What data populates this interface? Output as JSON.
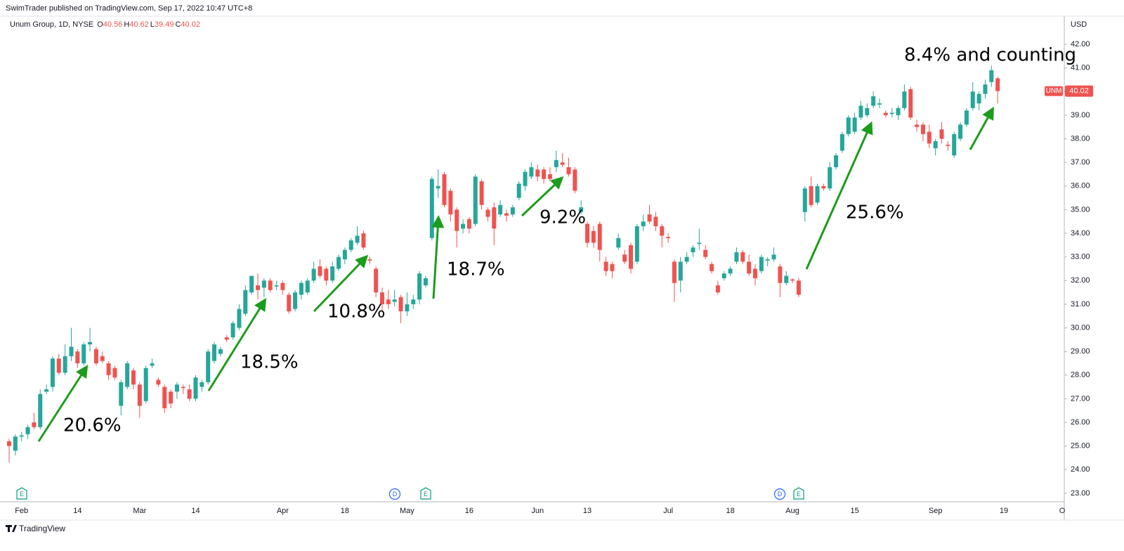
{
  "header": {
    "text": "SwimTrader published on TradingView.com, Sep 17, 2022 10:47 UTC+8"
  },
  "footer": {
    "text": "TradingView"
  },
  "chart_data": {
    "type": "candlestick",
    "title": "Unum Group, 1D, NYSE",
    "ohlc_prefixes": [
      "O",
      "H",
      "L",
      "C"
    ],
    "symbol": "UNM",
    "currency": "USD",
    "up_color": "#26a69a",
    "down_color": "#ef5350",
    "ylim": [
      22.64,
      43.19
    ],
    "yticks": [
      {
        "value": 23,
        "label": "23.00"
      },
      {
        "value": 24,
        "label": "24.00"
      },
      {
        "value": 25,
        "label": "25.00"
      },
      {
        "value": 26,
        "label": "26.00"
      },
      {
        "value": 27,
        "label": "27.00"
      },
      {
        "value": 28,
        "label": "28.00"
      },
      {
        "value": 29,
        "label": "29.00"
      },
      {
        "value": 30,
        "label": "30.00"
      },
      {
        "value": 31,
        "label": "31.00"
      },
      {
        "value": 32,
        "label": "32.00"
      },
      {
        "value": 33,
        "label": "33.00"
      },
      {
        "value": 34,
        "label": "34.00"
      },
      {
        "value": 35,
        "label": "35.00"
      },
      {
        "value": 36,
        "label": "36.00"
      },
      {
        "value": 37,
        "label": "37.00"
      },
      {
        "value": 38,
        "label": "38.00"
      },
      {
        "value": 39,
        "label": "39.00"
      },
      {
        "value": 40,
        "label": "40.00"
      },
      {
        "value": 41,
        "label": "41.00"
      },
      {
        "value": 42,
        "label": "42.00"
      }
    ],
    "categories": [
      null,
      null,
      "Feb",
      null,
      null,
      null,
      null,
      null,
      null,
      null,
      null,
      "14",
      null,
      null,
      null,
      null,
      null,
      null,
      null,
      null,
      null,
      "Mar",
      null,
      null,
      null,
      null,
      null,
      null,
      null,
      null,
      "14",
      null,
      null,
      null,
      null,
      null,
      null,
      null,
      null,
      null,
      null,
      null,
      null,
      null,
      "Apr",
      null,
      null,
      null,
      null,
      null,
      null,
      null,
      null,
      null,
      "18",
      null,
      null,
      null,
      null,
      null,
      null,
      null,
      null,
      null,
      "May",
      null,
      null,
      null,
      null,
      null,
      null,
      null,
      null,
      null,
      "16",
      null,
      null,
      null,
      null,
      null,
      null,
      null,
      null,
      null,
      null,
      "Jun",
      null,
      null,
      null,
      null,
      null,
      null,
      null,
      "13",
      null,
      null,
      null,
      null,
      null,
      null,
      null,
      null,
      null,
      null,
      null,
      null,
      "Jul",
      null,
      null,
      null,
      null,
      null,
      null,
      null,
      null,
      null,
      "18",
      null,
      null,
      null,
      null,
      null,
      null,
      null,
      null,
      null,
      "Aug",
      null,
      null,
      null,
      null,
      null,
      null,
      null,
      null,
      null,
      "15",
      null,
      null,
      null,
      null,
      null,
      null,
      null,
      null,
      null,
      null,
      null,
      null,
      "Sep",
      null,
      null,
      null,
      null,
      null,
      null,
      null,
      null,
      null,
      null
    ],
    "future_axis_labels": [
      "19",
      "O"
    ],
    "ohlc": [
      [
        25.2,
        25.3,
        24.3,
        25.0
      ],
      [
        24.8,
        25.5,
        24.6,
        25.4
      ],
      [
        25.4,
        25.6,
        25.2,
        25.45
      ],
      [
        25.5,
        25.9,
        25.3,
        25.8
      ],
      [
        26.0,
        26.4,
        25.7,
        25.8
      ],
      [
        25.8,
        27.4,
        25.7,
        27.2
      ],
      [
        27.3,
        27.6,
        27.2,
        27.4
      ],
      [
        27.5,
        28.8,
        27.3,
        28.7
      ],
      [
        28.7,
        28.9,
        28.0,
        28.1
      ],
      [
        28.1,
        29.3,
        28.0,
        28.8
      ],
      [
        28.8,
        30.0,
        28.6,
        29.2
      ],
      [
        29.0,
        29.1,
        28.3,
        28.5
      ],
      [
        28.5,
        29.4,
        28.4,
        29.3
      ],
      [
        29.3,
        30.0,
        29.0,
        29.4
      ],
      [
        29.1,
        29.2,
        28.4,
        28.5
      ],
      [
        28.8,
        29.0,
        28.5,
        28.6
      ],
      [
        28.5,
        28.6,
        27.8,
        28.0
      ],
      [
        28.3,
        28.4,
        27.8,
        27.9
      ],
      [
        26.7,
        27.8,
        26.3,
        27.7
      ],
      [
        27.5,
        28.6,
        27.4,
        28.5
      ],
      [
        28.2,
        28.3,
        27.4,
        27.6
      ],
      [
        27.6,
        27.7,
        26.2,
        26.7
      ],
      [
        26.9,
        28.4,
        26.8,
        28.3
      ],
      [
        28.4,
        28.7,
        28.3,
        28.5
      ],
      [
        27.8,
        27.9,
        27.5,
        27.6
      ],
      [
        27.5,
        27.6,
        26.4,
        26.6
      ],
      [
        27.3,
        27.4,
        26.6,
        26.8
      ],
      [
        27.3,
        27.7,
        27.0,
        27.6
      ],
      [
        27.5,
        27.6,
        27.2,
        27.45
      ],
      [
        27.4,
        27.6,
        26.9,
        27.0
      ],
      [
        27.0,
        28.0,
        26.9,
        27.9
      ],
      [
        27.5,
        27.8,
        27.3,
        27.7
      ],
      [
        27.7,
        29.1,
        27.6,
        29.0
      ],
      [
        28.6,
        29.4,
        28.5,
        29.3
      ],
      [
        28.9,
        29.2,
        28.8,
        29.1
      ],
      [
        29.6,
        29.7,
        29.4,
        29.5
      ],
      [
        29.6,
        30.3,
        29.5,
        30.2
      ],
      [
        30.0,
        31.0,
        29.9,
        30.8
      ],
      [
        30.6,
        31.8,
        30.5,
        31.6
      ],
      [
        31.5,
        32.2,
        31.4,
        32.2
      ],
      [
        31.8,
        32.3,
        31.2,
        31.6
      ],
      [
        31.7,
        32.1,
        31.3,
        32.0
      ],
      [
        32.0,
        32.1,
        31.5,
        31.6
      ],
      [
        31.75,
        32.0,
        31.6,
        31.8
      ],
      [
        31.9,
        32.0,
        31.4,
        31.6
      ],
      [
        31.4,
        31.5,
        30.6,
        30.7
      ],
      [
        30.8,
        31.6,
        30.7,
        31.5
      ],
      [
        31.4,
        32.0,
        31.2,
        31.9
      ],
      [
        31.5,
        32.1,
        31.4,
        32.0
      ],
      [
        32.0,
        32.8,
        31.9,
        32.5
      ],
      [
        32.6,
        32.9,
        32.1,
        32.2
      ],
      [
        32.5,
        32.6,
        31.8,
        32.0
      ],
      [
        32.0,
        32.8,
        31.9,
        32.6
      ],
      [
        32.5,
        33.1,
        32.4,
        33.0
      ],
      [
        32.9,
        33.4,
        32.7,
        33.3
      ],
      [
        33.3,
        33.8,
        33.2,
        33.7
      ],
      [
        33.6,
        34.3,
        33.5,
        33.9
      ],
      [
        34.0,
        34.1,
        33.3,
        33.4
      ],
      [
        32.9,
        33.0,
        32.7,
        32.85
      ],
      [
        32.5,
        32.6,
        31.3,
        31.5
      ],
      [
        31.5,
        31.7,
        30.7,
        31.0
      ],
      [
        31.2,
        31.6,
        30.8,
        31.0
      ],
      [
        31.1,
        31.6,
        30.9,
        31.2
      ],
      [
        31.3,
        31.4,
        30.2,
        30.7
      ],
      [
        30.7,
        31.5,
        30.5,
        31.0
      ],
      [
        31.0,
        31.4,
        30.8,
        31.2
      ],
      [
        31.2,
        32.4,
        31.0,
        32.3
      ],
      [
        31.8,
        32.2,
        31.7,
        32.1
      ],
      [
        33.8,
        36.4,
        33.7,
        36.3
      ],
      [
        35.9,
        36.7,
        35.5,
        36.0
      ],
      [
        36.5,
        36.6,
        35.1,
        35.2
      ],
      [
        35.8,
        35.9,
        34.5,
        34.8
      ],
      [
        35.0,
        35.1,
        33.4,
        34.1
      ],
      [
        34.2,
        34.6,
        34.0,
        34.4
      ],
      [
        34.6,
        34.7,
        34.0,
        34.2
      ],
      [
        34.4,
        36.5,
        34.3,
        36.4
      ],
      [
        36.2,
        36.3,
        35.0,
        35.2
      ],
      [
        35.0,
        35.1,
        34.5,
        34.7
      ],
      [
        35.1,
        35.3,
        33.5,
        34.2
      ],
      [
        34.8,
        35.4,
        34.7,
        35.2
      ],
      [
        34.85,
        35.0,
        34.5,
        34.75
      ],
      [
        34.8,
        35.2,
        34.7,
        35.1
      ],
      [
        35.5,
        36.2,
        35.4,
        36.1
      ],
      [
        36.0,
        36.7,
        35.8,
        36.6
      ],
      [
        36.4,
        37.0,
        36.3,
        36.8
      ],
      [
        36.7,
        36.9,
        36.2,
        36.4
      ],
      [
        36.7,
        36.8,
        36.1,
        36.3
      ],
      [
        36.5,
        36.8,
        36.2,
        36.3
      ],
      [
        36.8,
        37.5,
        36.6,
        37.1
      ],
      [
        37.0,
        37.4,
        36.8,
        36.9
      ],
      [
        36.8,
        37.2,
        36.4,
        36.5
      ],
      [
        36.7,
        36.8,
        35.7,
        35.8
      ],
      [
        34.9,
        35.4,
        34.8,
        35.1
      ],
      [
        34.4,
        34.5,
        33.4,
        33.6
      ],
      [
        34.1,
        34.3,
        33.4,
        33.6
      ],
      [
        34.4,
        34.5,
        32.8,
        33.3
      ],
      [
        32.8,
        33.0,
        32.2,
        32.4
      ],
      [
        32.7,
        32.8,
        32.1,
        32.4
      ],
      [
        33.4,
        34.0,
        33.3,
        33.8
      ],
      [
        33.1,
        33.3,
        32.7,
        32.8
      ],
      [
        33.5,
        33.6,
        32.3,
        32.5
      ],
      [
        32.8,
        34.4,
        32.7,
        34.3
      ],
      [
        34.3,
        34.8,
        34.1,
        34.5
      ],
      [
        34.8,
        35.2,
        34.4,
        34.5
      ],
      [
        34.7,
        34.9,
        34.1,
        34.3
      ],
      [
        34.3,
        34.4,
        33.4,
        33.9
      ],
      [
        33.85,
        34.0,
        33.6,
        33.8
      ],
      [
        32.8,
        32.9,
        31.1,
        31.9
      ],
      [
        32.0,
        33.0,
        31.5,
        32.8
      ],
      [
        32.8,
        33.2,
        32.7,
        33.0
      ],
      [
        33.2,
        33.5,
        33.0,
        33.4
      ],
      [
        33.55,
        34.2,
        33.3,
        33.6
      ],
      [
        33.3,
        33.5,
        32.9,
        33.0
      ],
      [
        32.7,
        32.8,
        32.3,
        32.4
      ],
      [
        31.8,
        32.0,
        31.4,
        31.5
      ],
      [
        32.1,
        32.4,
        32.0,
        32.3
      ],
      [
        32.3,
        32.6,
        32.2,
        32.5
      ],
      [
        32.8,
        33.4,
        32.7,
        33.2
      ],
      [
        33.2,
        33.3,
        32.7,
        32.8
      ],
      [
        32.8,
        33.1,
        32.2,
        32.3
      ],
      [
        32.5,
        32.7,
        31.8,
        32.1
      ],
      [
        32.4,
        33.1,
        32.3,
        33.0
      ],
      [
        32.85,
        33.0,
        32.6,
        32.9
      ],
      [
        32.9,
        33.4,
        32.8,
        33.1
      ],
      [
        32.6,
        32.7,
        31.3,
        31.9
      ],
      [
        31.9,
        32.4,
        31.8,
        32.2
      ],
      [
        32.05,
        32.1,
        31.9,
        32.0
      ],
      [
        32.0,
        32.1,
        31.3,
        31.4
      ],
      [
        34.9,
        36.0,
        34.5,
        35.9
      ],
      [
        36.0,
        36.4,
        35.1,
        35.2
      ],
      [
        35.3,
        36.1,
        35.2,
        36.0
      ],
      [
        36.0,
        36.1,
        35.8,
        35.9
      ],
      [
        35.9,
        37.0,
        35.8,
        36.8
      ],
      [
        36.8,
        37.4,
        36.7,
        37.3
      ],
      [
        37.5,
        38.3,
        37.4,
        38.2
      ],
      [
        38.2,
        39.0,
        38.1,
        38.9
      ],
      [
        38.3,
        39.1,
        38.2,
        38.9
      ],
      [
        38.9,
        39.6,
        38.8,
        39.4
      ],
      [
        39.0,
        39.5,
        38.9,
        39.3
      ],
      [
        39.4,
        40.0,
        39.3,
        39.8
      ],
      [
        39.45,
        39.7,
        39.3,
        39.5
      ],
      [
        39.1,
        39.2,
        38.9,
        39.0
      ],
      [
        39.05,
        39.3,
        38.9,
        39.1
      ],
      [
        39.0,
        39.4,
        38.8,
        39.3
      ],
      [
        39.3,
        40.3,
        39.2,
        40.0
      ],
      [
        40.1,
        40.2,
        38.8,
        38.9
      ],
      [
        38.6,
        38.8,
        38.3,
        38.5
      ],
      [
        38.6,
        38.7,
        37.9,
        38.2
      ],
      [
        38.3,
        38.6,
        37.6,
        37.8
      ],
      [
        37.6,
        38.0,
        37.3,
        37.9
      ],
      [
        38.4,
        38.7,
        37.8,
        38.0
      ],
      [
        37.75,
        37.9,
        37.5,
        37.7
      ],
      [
        37.3,
        38.3,
        37.2,
        38.2
      ],
      [
        38.0,
        38.7,
        37.9,
        38.6
      ],
      [
        38.6,
        39.3,
        38.5,
        39.2
      ],
      [
        39.3,
        40.4,
        39.2,
        40.0
      ],
      [
        39.5,
        40.0,
        39.2,
        39.9
      ],
      [
        39.9,
        40.5,
        39.7,
        40.3
      ],
      [
        40.4,
        41.1,
        40.2,
        40.9
      ],
      [
        40.56,
        40.62,
        39.49,
        40.02
      ]
    ],
    "annotations": [
      "20.6%",
      "18.5%",
      "10.8%",
      "18.7%",
      "9.2%",
      "25.6%",
      "8.4% and counting"
    ],
    "events": [
      "E",
      "D",
      "E",
      "D",
      "E"
    ]
  }
}
